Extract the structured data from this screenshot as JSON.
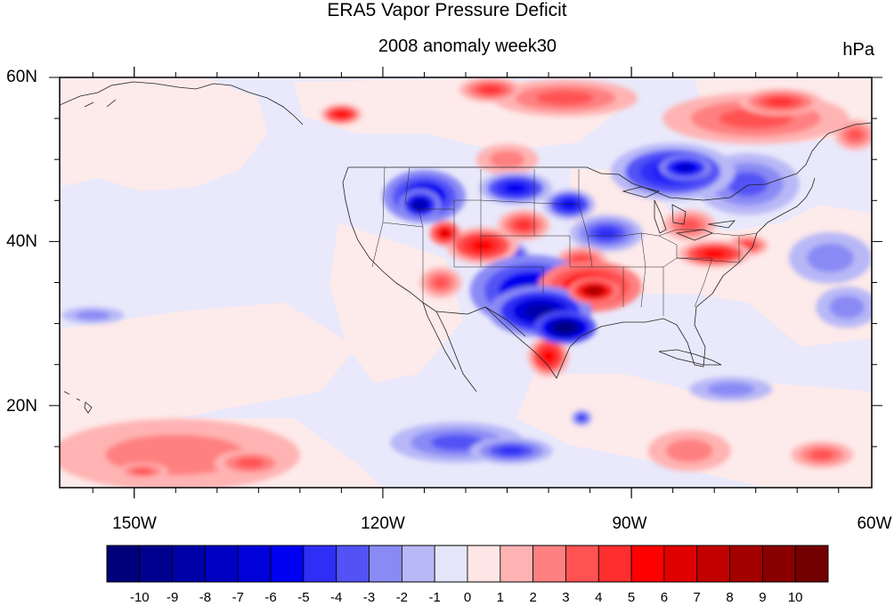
{
  "map": {
    "title": "ERA5 Vapor Pressure Deficit",
    "subtitle": "2008 anomaly week30",
    "units": "hPa",
    "lat_labels": [
      "60N",
      "40N",
      "20N"
    ],
    "lon_labels": [
      "150W",
      "120W",
      "90W",
      "60W"
    ],
    "extent": {
      "lon_min": -159,
      "lon_max": -61,
      "lat_min": 10,
      "lat_max": 60
    },
    "colorbar": {
      "labels": [
        "-10",
        "-9",
        "-8",
        "-7",
        "-6",
        "-5",
        "-4",
        "-3",
        "-2",
        "-1",
        "0",
        "1",
        "2",
        "3",
        "4",
        "5",
        "6",
        "7",
        "8",
        "9",
        "10"
      ],
      "colors": [
        "#00007a",
        "#00008f",
        "#0000a8",
        "#0000c2",
        "#0000db",
        "#0000f2",
        "#2e2ef7",
        "#5252f5",
        "#8a8af5",
        "#b8b8f7",
        "#e6e6fa",
        "#ffe6e6",
        "#ffb3b3",
        "#ff8080",
        "#ff5252",
        "#ff2e2e",
        "#ff0000",
        "#e00000",
        "#c20000",
        "#a30000",
        "#8a0000",
        "#730000"
      ]
    },
    "anomaly_patches": [
      {
        "lon": -115,
        "lat": 45.5,
        "rlon": 4.0,
        "rlat": 2.6,
        "value": -6
      },
      {
        "lon": -115.5,
        "lat": 44.5,
        "rlon": 2.0,
        "rlat": 1.5,
        "value": -8
      },
      {
        "lon": -104,
        "lat": 46.5,
        "rlon": 3.5,
        "rlat": 1.6,
        "value": -5
      },
      {
        "lon": -97.5,
        "lat": 44.5,
        "rlon": 2.5,
        "rlat": 1.5,
        "value": -5
      },
      {
        "lon": -93,
        "lat": 41,
        "rlon": 3.5,
        "rlat": 1.8,
        "value": -4
      },
      {
        "lon": -102,
        "lat": 34,
        "rlon": 6.0,
        "rlat": 3.5,
        "value": -6
      },
      {
        "lon": -101,
        "lat": 31.5,
        "rlon": 5.0,
        "rlat": 2.5,
        "value": -8
      },
      {
        "lon": -98,
        "lat": 29.5,
        "rlon": 3.0,
        "rlat": 1.6,
        "value": -10
      },
      {
        "lon": -104,
        "lat": 37.5,
        "rlon": 1.5,
        "rlat": 2.0,
        "value": -5
      },
      {
        "lon": -85,
        "lat": 48.5,
        "rlon": 6.0,
        "rlat": 2.8,
        "value": -5
      },
      {
        "lon": -83.5,
        "lat": 49,
        "rlon": 2.5,
        "rlat": 1.2,
        "value": -7
      },
      {
        "lon": -76,
        "lat": 47,
        "rlon": 5.0,
        "rlat": 3.0,
        "value": -3
      },
      {
        "lon": -111,
        "lat": 15.5,
        "rlon": 6.5,
        "rlat": 2.0,
        "value": -3
      },
      {
        "lon": -104.5,
        "lat": 14.5,
        "rlon": 4.0,
        "rlat": 1.3,
        "value": -4
      },
      {
        "lon": -96,
        "lat": 18.5,
        "rlon": 1.0,
        "rlat": 0.8,
        "value": -4
      },
      {
        "lon": -66,
        "lat": 38,
        "rlon": 4.0,
        "rlat": 2.5,
        "value": -2
      },
      {
        "lon": -64,
        "lat": 32,
        "rlon": 3.0,
        "rlat": 2.0,
        "value": -2
      },
      {
        "lon": -155,
        "lat": 31,
        "rlon": 3.0,
        "rlat": 0.8,
        "value": -2
      },
      {
        "lon": -78,
        "lat": 22,
        "rlon": 4.0,
        "rlat": 1.2,
        "value": -2
      },
      {
        "lon": -108,
        "lat": 39.5,
        "rlon": 3.5,
        "rlat": 1.8,
        "value": 5
      },
      {
        "lon": -112.5,
        "lat": 41,
        "rlon": 1.5,
        "rlat": 1.2,
        "value": 6
      },
      {
        "lon": -103,
        "lat": 42,
        "rlon": 2.5,
        "rlat": 1.5,
        "value": 4
      },
      {
        "lon": -95,
        "lat": 34.5,
        "rlon": 5.0,
        "rlat": 2.5,
        "value": 6
      },
      {
        "lon": -94.5,
        "lat": 34,
        "rlon": 2.5,
        "rlat": 1.3,
        "value": 8
      },
      {
        "lon": -96,
        "lat": 37.5,
        "rlon": 2.5,
        "rlat": 1.5,
        "value": 4
      },
      {
        "lon": -100,
        "lat": 26,
        "rlon": 2.0,
        "rlat": 2.0,
        "value": 5
      },
      {
        "lon": -80,
        "lat": 38.5,
        "rlon": 3.5,
        "rlat": 1.3,
        "value": 5
      },
      {
        "lon": -76,
        "lat": 39.5,
        "rlon": 2.0,
        "rlat": 1.0,
        "value": 4
      },
      {
        "lon": -83,
        "lat": 42,
        "rlon": 2.5,
        "rlat": 1.5,
        "value": 3
      },
      {
        "lon": -113,
        "lat": 35,
        "rlon": 2.0,
        "rlat": 1.5,
        "value": 3
      },
      {
        "lon": -98,
        "lat": 57.5,
        "rlon": 7.0,
        "rlat": 1.8,
        "value": 3
      },
      {
        "lon": -107,
        "lat": 58.5,
        "rlon": 3.0,
        "rlat": 1.2,
        "value": 4
      },
      {
        "lon": -125,
        "lat": 55.5,
        "rlon": 2.0,
        "rlat": 1.0,
        "value": 5
      },
      {
        "lon": -75,
        "lat": 55,
        "rlon": 9.0,
        "rlat": 2.5,
        "value": 3
      },
      {
        "lon": -72,
        "lat": 57,
        "rlon": 4.0,
        "rlat": 1.3,
        "value": 4
      },
      {
        "lon": -63,
        "lat": 53,
        "rlon": 2.0,
        "rlat": 1.5,
        "value": 3
      },
      {
        "lon": -145,
        "lat": 14,
        "rlon": 12.0,
        "rlat": 3.5,
        "value": 2
      },
      {
        "lon": -136,
        "lat": 13,
        "rlon": 3.5,
        "rlat": 1.3,
        "value": 3
      },
      {
        "lon": -149,
        "lat": 12,
        "rlon": 2.5,
        "rlat": 0.8,
        "value": 3
      },
      {
        "lon": -83,
        "lat": 14.5,
        "rlon": 4.0,
        "rlat": 2.0,
        "value": 2
      },
      {
        "lon": -67,
        "lat": 14,
        "rlon": 3.0,
        "rlat": 1.3,
        "value": 3
      },
      {
        "lon": -105,
        "lat": 50,
        "rlon": 3.0,
        "rlat": 1.5,
        "value": 2
      }
    ]
  }
}
